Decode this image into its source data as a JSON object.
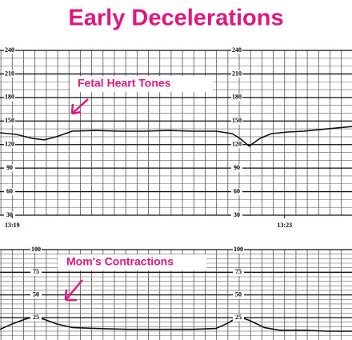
{
  "title": "Early Decelerations",
  "chart_data": [
    {
      "type": "line",
      "annotation": "Fetal Heart Tones",
      "xlim": [
        18.82,
        23.99
      ],
      "xticks": [
        {
          "value": 19,
          "label": "13:19"
        },
        {
          "value": 23,
          "label": "13:23"
        }
      ],
      "ylim": [
        30,
        240
      ],
      "yticks": [
        30,
        60,
        90,
        120,
        150,
        180,
        210,
        240
      ],
      "grid": true,
      "color": "#111111",
      "x": [
        18.82,
        19.06,
        19.29,
        19.47,
        19.65,
        19.88,
        20.23,
        20.58,
        20.94,
        21.29,
        21.64,
        21.99,
        22.23,
        22.34,
        22.48,
        22.64,
        22.81,
        23.05,
        23.28,
        23.63,
        23.99
      ],
      "values": [
        135,
        133,
        128,
        126,
        130,
        137,
        138,
        137,
        137,
        138,
        137,
        137,
        134,
        128,
        118,
        128,
        134,
        136,
        137,
        140,
        143
      ]
    },
    {
      "type": "line",
      "annotation": "Mom's Contractions",
      "xlim": [
        18.82,
        23.99
      ],
      "ylim": [
        0,
        100
      ],
      "yticks": [
        25,
        50,
        75,
        100
      ],
      "grid": true,
      "color": "#111111",
      "x": [
        18.82,
        19.0,
        19.18,
        19.32,
        19.47,
        19.65,
        19.88,
        20.23,
        20.7,
        21.17,
        21.64,
        21.99,
        22.17,
        22.32,
        22.48,
        22.7,
        22.93,
        23.28,
        23.63,
        23.99
      ],
      "values": [
        12,
        18,
        23,
        26,
        23,
        18,
        14,
        13,
        12,
        12,
        12,
        13,
        19,
        26,
        22,
        14,
        11,
        11,
        10,
        10
      ]
    }
  ]
}
